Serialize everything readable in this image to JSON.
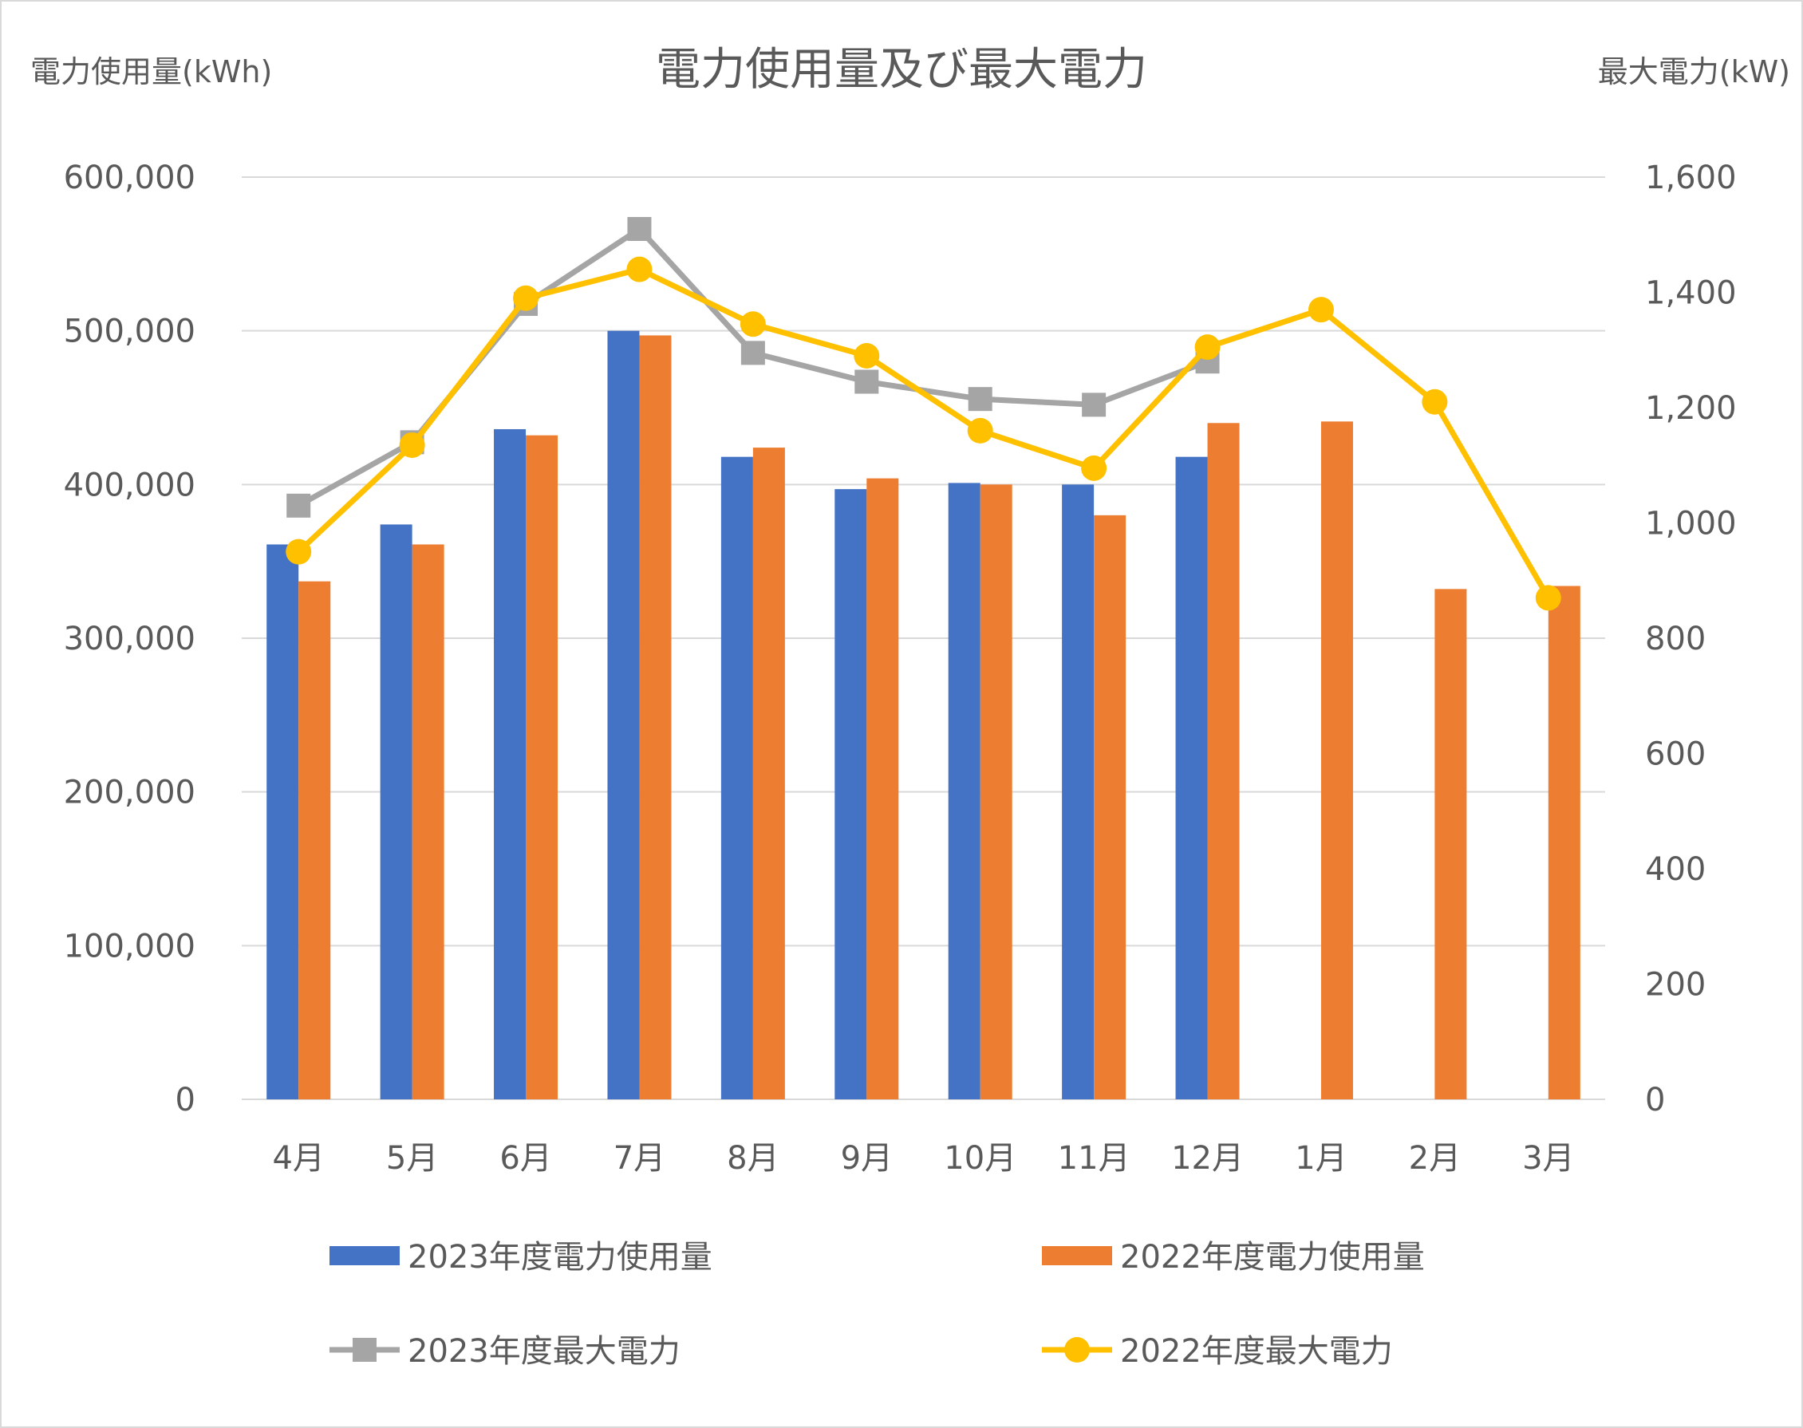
{
  "chart_data": {
    "type": "bar",
    "title": "電力使用量及び最大電力",
    "ylabel_left": "電力使用量(kWh)",
    "ylabel_right": "最大電力(kW)",
    "categories": [
      "4月",
      "5月",
      "6月",
      "7月",
      "8月",
      "9月",
      "10月",
      "11月",
      "12月",
      "1月",
      "2月",
      "3月"
    ],
    "ylim_left": [
      0,
      600000
    ],
    "ylim_right": [
      0,
      1600
    ],
    "yticks_left": [
      "0",
      "100,000",
      "200,000",
      "300,000",
      "400,000",
      "500,000",
      "600,000"
    ],
    "yticks_right": [
      "0",
      "200",
      "400",
      "600",
      "800",
      "1,000",
      "1,200",
      "1,400",
      "1,600"
    ],
    "grid": true,
    "legend_position": "bottom",
    "series": [
      {
        "name": "2023年度電力使用量",
        "type": "bar",
        "axis": "left",
        "color": "#4472C4",
        "values": [
          361000,
          374000,
          436000,
          500000,
          418000,
          397000,
          401000,
          400000,
          418000,
          null,
          null,
          null
        ]
      },
      {
        "name": "2022年度電力使用量",
        "type": "bar",
        "axis": "left",
        "color": "#ED7D31",
        "values": [
          337000,
          361000,
          432000,
          497000,
          424000,
          404000,
          400000,
          380000,
          440000,
          441000,
          332000,
          334000
        ]
      },
      {
        "name": "2023年度最大電力",
        "type": "line",
        "marker": "square",
        "axis": "right",
        "color": "#A5A5A5",
        "values": [
          1030,
          1140,
          1380,
          1510,
          1295,
          1245,
          1215,
          1205,
          1280,
          null,
          null,
          null
        ]
      },
      {
        "name": "2022年度最大電力",
        "type": "line",
        "marker": "circle",
        "axis": "right",
        "color": "#FFC000",
        "values": [
          950,
          1135,
          1390,
          1440,
          1345,
          1290,
          1160,
          1095,
          1305,
          1370,
          1210,
          870
        ]
      }
    ]
  }
}
